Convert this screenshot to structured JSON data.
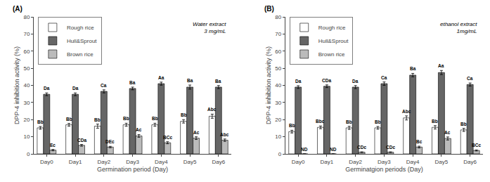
{
  "chart_data": [
    {
      "type": "bar",
      "title": "(A)",
      "annotation": "Water extract\n3 mg/mL",
      "xlabel": "Germination period (Day)",
      "ylabel": "DPP-4 inhibition activity (%)",
      "categories": [
        "Day0",
        "Day1",
        "Day2",
        "Day3",
        "Day4",
        "Day5",
        "Day6"
      ],
      "ylim": [
        0,
        80
      ],
      "yticks": [
        0,
        10,
        20,
        30,
        40,
        50,
        60,
        70,
        80
      ],
      "grid": false,
      "legend": "upper left",
      "series": [
        {
          "name": "Rough rice",
          "color": "#ffffff",
          "values": [
            15.2,
            17.0,
            16.2,
            17.0,
            17.0,
            19.0,
            22.0
          ],
          "errors": [
            0.8,
            0.8,
            1.2,
            0.9,
            0.9,
            1.0,
            1.2
          ],
          "value_labels": [
            "Bb",
            "Bb",
            "Bb",
            "Bb",
            "Bb",
            "Bb",
            "Abc"
          ]
        },
        {
          "name": "Hull&Sprout",
          "color": "#666666",
          "values": [
            34.8,
            34.8,
            36.5,
            38.2,
            41.0,
            39.0,
            39.0
          ],
          "errors": [
            0.8,
            0.8,
            0.9,
            0.8,
            0.9,
            1.2,
            0.9
          ],
          "value_labels": [
            "Da",
            "Da",
            "Ca",
            "Ba",
            "Aa",
            "Ba",
            "Ba"
          ]
        },
        {
          "name": "Brown rice",
          "color": "#bbbbbb",
          "values": [
            2.2,
            5.0,
            4.0,
            10.5,
            6.5,
            9.2,
            8.0
          ],
          "errors": [
            0.4,
            0.5,
            0.4,
            0.8,
            0.6,
            0.8,
            0.7
          ],
          "value_labels": [
            "Ec",
            "CDa",
            "DEc",
            "Ac",
            "BCc",
            "Ac",
            "Abc"
          ]
        }
      ]
    },
    {
      "type": "bar",
      "title": "(B)",
      "annotation": "ethanol extract\n1mg/mL",
      "xlabel": "Germinatgion periods (Day)",
      "ylabel": "DPP-4 inhibition activity (%)",
      "categories": [
        "Day0",
        "Day1",
        "Day2",
        "Day3",
        "Day4",
        "Day5",
        "Day6"
      ],
      "ylim": [
        0,
        80
      ],
      "yticks": [
        0,
        10,
        20,
        30,
        40,
        50,
        60,
        70,
        80
      ],
      "grid": false,
      "legend": "upper left",
      "series": [
        {
          "name": "Rough rice",
          "color": "#ffffff",
          "values": [
            13.0,
            15.5,
            15.2,
            15.2,
            21.0,
            15.5,
            14.0
          ],
          "errors": [
            0.8,
            0.8,
            0.9,
            0.8,
            1.2,
            1.0,
            0.9
          ],
          "value_labels": [
            "Bb",
            "Bbc",
            "Bb",
            "Bb",
            "Abc",
            "Bb",
            "Bb"
          ]
        },
        {
          "name": "Hull&Sprout",
          "color": "#666666",
          "values": [
            39.0,
            39.5,
            39.0,
            41.0,
            46.0,
            47.5,
            40.5
          ],
          "errors": [
            0.8,
            0.8,
            0.9,
            1.0,
            1.0,
            1.2,
            0.9
          ],
          "value_labels": [
            "Da",
            "CDa",
            "Da",
            "Ca",
            "Ba",
            "Aa",
            "Ca"
          ]
        },
        {
          "name": "Brown rice",
          "color": "#bbbbbb",
          "values": [
            0.0,
            0.0,
            1.0,
            1.0,
            4.0,
            9.0,
            2.0
          ],
          "errors": [
            0.0,
            0.0,
            0.2,
            0.2,
            0.5,
            0.9,
            0.3
          ],
          "value_labels": [
            "ND",
            "ND",
            "CDc",
            "CDc",
            "Bc",
            "Ac",
            "BCc"
          ]
        }
      ]
    }
  ]
}
